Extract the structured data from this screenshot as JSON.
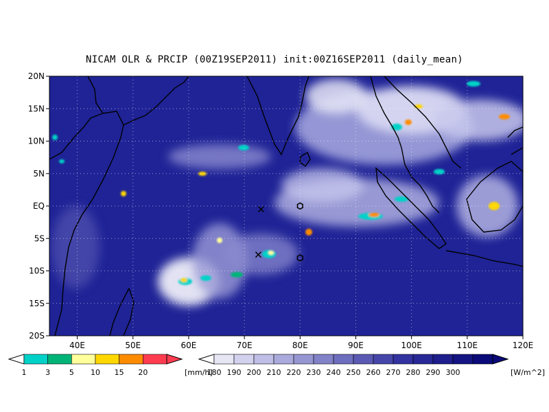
{
  "title": "NICAM OLR & PRCIP (00Z19SEP2011) init:00Z16SEP2011 (daily_mean)",
  "map": {
    "lon_range": [
      35,
      120
    ],
    "lat_range": [
      -20,
      20
    ],
    "lat_ticks": [
      {
        "lat": 20,
        "label": "20N"
      },
      {
        "lat": 15,
        "label": "15N"
      },
      {
        "lat": 10,
        "label": "10N"
      },
      {
        "lat": 5,
        "label": "5N"
      },
      {
        "lat": 0,
        "label": "EQ"
      },
      {
        "lat": -5,
        "label": "5S"
      },
      {
        "lat": -10,
        "label": "10S"
      },
      {
        "lat": -15,
        "label": "15S"
      },
      {
        "lat": -20,
        "label": "20S"
      }
    ],
    "lon_ticks": [
      {
        "lon": 40,
        "label": "40E"
      },
      {
        "lon": 50,
        "label": "50E"
      },
      {
        "lon": 60,
        "label": "60E"
      },
      {
        "lon": 70,
        "label": "70E"
      },
      {
        "lon": 80,
        "label": "80E"
      },
      {
        "lon": 90,
        "label": "90E"
      },
      {
        "lon": 100,
        "label": "100E"
      },
      {
        "lon": 110,
        "label": "110E"
      },
      {
        "lon": 120,
        "label": "120E"
      }
    ],
    "background_color": "#1f2396",
    "coastline_color": "#000000",
    "grid": "dotted",
    "markers": [
      {
        "type": "x",
        "lon": 73,
        "lat": -0.5
      },
      {
        "type": "hexagon",
        "lon": 80,
        "lat": 0
      },
      {
        "type": "x",
        "lon": 72.5,
        "lat": -7.5
      },
      {
        "type": "hexagon",
        "lon": 80,
        "lat": -8
      }
    ]
  },
  "precip_colorbar": {
    "labels": [
      "1",
      "3",
      "5",
      "10",
      "15",
      "20"
    ],
    "unit": "[mm/h]",
    "colors": [
      "#00d2c8",
      "#00b478",
      "#ffff9b",
      "#ffd700",
      "#ff8c00",
      "#ff3c50"
    ]
  },
  "olr_colorbar": {
    "labels": [
      "180",
      "190",
      "200",
      "210",
      "220",
      "230",
      "240",
      "250",
      "260",
      "270",
      "280",
      "290",
      "300"
    ],
    "unit": "[W/m^2]",
    "colors": [
      "#e6e6f5",
      "#d2d2ee",
      "#bebee6",
      "#aaaadc",
      "#9696d2",
      "#8282c8",
      "#6e6ebe",
      "#5a5ab4",
      "#4646aa",
      "#3232a0",
      "#282896",
      "#1e1e8c",
      "#141482",
      "#0a0a78"
    ]
  }
}
